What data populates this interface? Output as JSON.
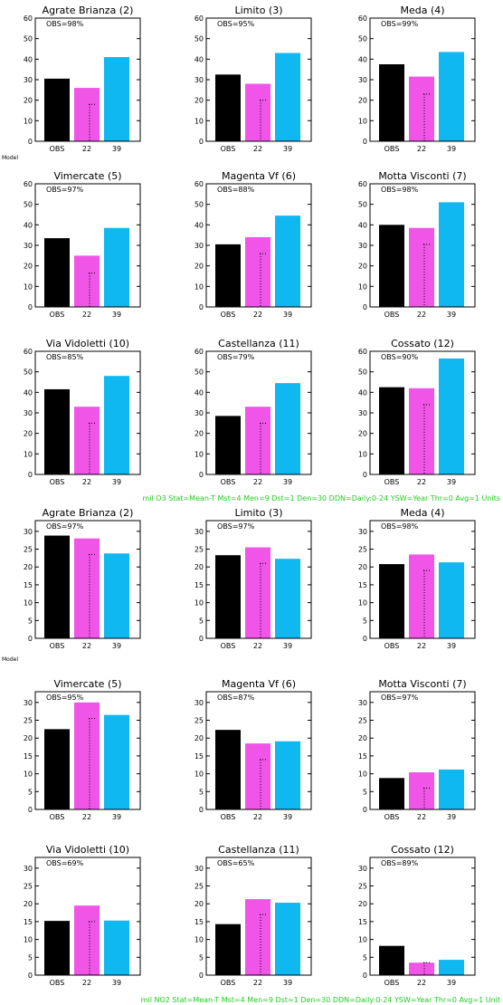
{
  "colors": {
    "OBS": "#000000",
    "22": "#f055e8",
    "39": "#0fb8f0",
    "footer": "#22cc22"
  },
  "chart_data": [
    {
      "type": "bar",
      "categories": [
        "OBS",
        "22",
        "39"
      ],
      "ylim": [
        0,
        60
      ],
      "yticks": [
        0,
        10,
        20,
        30,
        40,
        50,
        60
      ],
      "model_label": "Model",
      "footer": "mil O3 Stat=Mean-T Mst=4 Men=9 Dst=1 Den=30 DDN=Daily:0-24 YSW=Year Thr=0 Avg=1 Units",
      "panels": [
        {
          "title": "Agrate Brianza (2)",
          "obs": "OBS=98%",
          "values": [
            30.5,
            26,
            41
          ],
          "dotted": 18
        },
        {
          "title": "Limito (3)",
          "obs": "OBS=95%",
          "values": [
            32.5,
            28,
            43
          ],
          "dotted": 20
        },
        {
          "title": "Meda (4)",
          "obs": "OBS=99%",
          "values": [
            37.5,
            31.5,
            43.5
          ],
          "dotted": 23
        },
        {
          "title": "Vimercate (5)",
          "obs": "OBS=97%",
          "values": [
            33.5,
            25,
            38.5
          ],
          "dotted": 16.5
        },
        {
          "title": "Magenta Vf (6)",
          "obs": "OBS=88%",
          "values": [
            30.5,
            34,
            44.5
          ],
          "dotted": 26
        },
        {
          "title": "Motta Visconti (7)",
          "obs": "OBS=98%",
          "values": [
            40,
            38.5,
            51
          ],
          "dotted": 30.5
        },
        {
          "title": "Via Vidoletti (10)",
          "obs": "OBS=85%",
          "values": [
            41.5,
            33,
            48
          ],
          "dotted": 25
        },
        {
          "title": "Castellanza (11)",
          "obs": "OBS=79%",
          "values": [
            28.5,
            33,
            44.5
          ],
          "dotted": 25
        },
        {
          "title": "Cossato (12)",
          "obs": "OBS=90%",
          "values": [
            42.5,
            42,
            56.5
          ],
          "dotted": 34
        }
      ]
    },
    {
      "type": "bar",
      "categories": [
        "OBS",
        "22",
        "39"
      ],
      "ylim": [
        0,
        33
      ],
      "yticks": [
        0,
        5,
        10,
        15,
        20,
        25,
        30
      ],
      "model_label": "Model",
      "footer": "mil NO2 Stat=Mean-T Mst=4 Men=9 Dst=1 Den=30 DDN=Daily:0-24 YSW=Year Thr=0 Avg=1 Unit",
      "panels": [
        {
          "title": "Agrate Brianza (2)",
          "obs": "OBS=97%",
          "values": [
            28.8,
            28,
            23.8
          ],
          "dotted": 23.5
        },
        {
          "title": "Limito (3)",
          "obs": "OBS=97%",
          "values": [
            23.3,
            25.5,
            22.3
          ],
          "dotted": 21
        },
        {
          "title": "Meda (4)",
          "obs": "OBS=98%",
          "values": [
            20.8,
            23.5,
            21.3
          ],
          "dotted": 19
        },
        {
          "title": "Vimercate (5)",
          "obs": "OBS=95%",
          "values": [
            22.5,
            30,
            26.5
          ],
          "dotted": 25.5
        },
        {
          "title": "Magenta Vf (6)",
          "obs": "OBS=87%",
          "values": [
            22.3,
            18.5,
            19.1
          ],
          "dotted": 14
        },
        {
          "title": "Motta Visconti (7)",
          "obs": "OBS=97%",
          "values": [
            8.8,
            10.4,
            11.2
          ],
          "dotted": 6
        },
        {
          "title": "Via Vidoletti (10)",
          "obs": "OBS=69%",
          "values": [
            15.2,
            19.5,
            15.3
          ],
          "dotted": 15
        },
        {
          "title": "Castellanza (11)",
          "obs": "OBS=65%",
          "values": [
            14.3,
            21.3,
            20.3
          ],
          "dotted": 17
        },
        {
          "title": "Cossato (12)",
          "obs": "OBS=89%",
          "values": [
            8.2,
            3.5,
            4.3
          ],
          "dotted": 3.5
        }
      ]
    }
  ]
}
